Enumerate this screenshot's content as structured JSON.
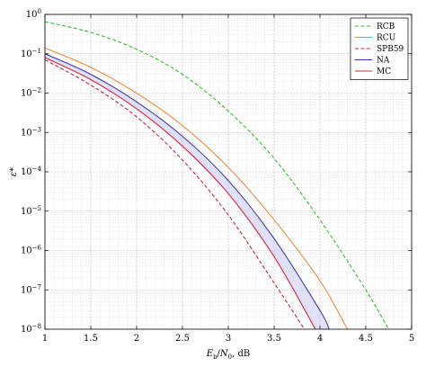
{
  "chart_data": {
    "type": "line",
    "xlabel": "E_b/N_0, dB",
    "ylabel": "ε*",
    "xlim": [
      1,
      5
    ],
    "ylim": [
      1e-08,
      1
    ],
    "yscale": "log",
    "grid": true,
    "legend_position": "top-right",
    "x_ticks": [
      "1",
      "1.5",
      "2",
      "2.5",
      "3",
      "3.5",
      "4",
      "4.5",
      "5"
    ],
    "y_ticks": [
      {
        "base": "10",
        "exp": "0"
      },
      {
        "base": "10",
        "exp": "−1"
      },
      {
        "base": "10",
        "exp": "−2"
      },
      {
        "base": "10",
        "exp": "−3"
      },
      {
        "base": "10",
        "exp": "−4"
      },
      {
        "base": "10",
        "exp": "−5"
      },
      {
        "base": "10",
        "exp": "−6"
      },
      {
        "base": "10",
        "exp": "−7"
      },
      {
        "base": "10",
        "exp": "−8"
      }
    ],
    "series": [
      {
        "name": "RCB",
        "color": "#3cb83c",
        "dash": "dashed",
        "x": [
          1,
          1.5,
          2,
          2.5,
          3,
          3.5,
          4,
          4.5,
          4.75
        ],
        "y": [
          0.65,
          0.35,
          0.13,
          0.03,
          0.0035,
          0.00022,
          6e-06,
          1e-07,
          1e-08
        ]
      },
      {
        "name": "RCU",
        "color": "#f08a3c",
        "dash": "solid",
        "x": [
          1,
          1.5,
          2,
          2.5,
          3,
          3.5,
          4,
          4.3
        ],
        "y": [
          0.14,
          0.045,
          0.01,
          0.0015,
          0.00013,
          6e-06,
          1.7e-07,
          1e-08
        ]
      },
      {
        "name": "SPB59",
        "color": "#c0283c",
        "dash": "dashed",
        "x": [
          1,
          1.5,
          2,
          2.5,
          3,
          3.5,
          3.83
        ],
        "y": [
          0.07,
          0.016,
          0.0025,
          0.0002,
          8e-06,
          1.5e-07,
          1e-08
        ]
      },
      {
        "name": "NA",
        "color": "#3a3aa8",
        "dash": "solid",
        "x": [
          1,
          1.5,
          2,
          2.5,
          3,
          3.5,
          4,
          4.1
        ],
        "y": [
          0.1,
          0.03,
          0.006,
          0.0008,
          6e-05,
          2e-06,
          3e-08,
          1e-08
        ]
      },
      {
        "name": "MC",
        "color": "#d8283c",
        "dash": "solid",
        "x": [
          1,
          1.5,
          2,
          2.5,
          3,
          3.5,
          3.95
        ],
        "y": [
          0.08,
          0.022,
          0.004,
          0.00045,
          2.8e-05,
          7e-07,
          1e-08
        ]
      }
    ],
    "shaded_band": {
      "between": [
        "NA",
        "MC"
      ],
      "color": "#c8c8f0"
    }
  }
}
